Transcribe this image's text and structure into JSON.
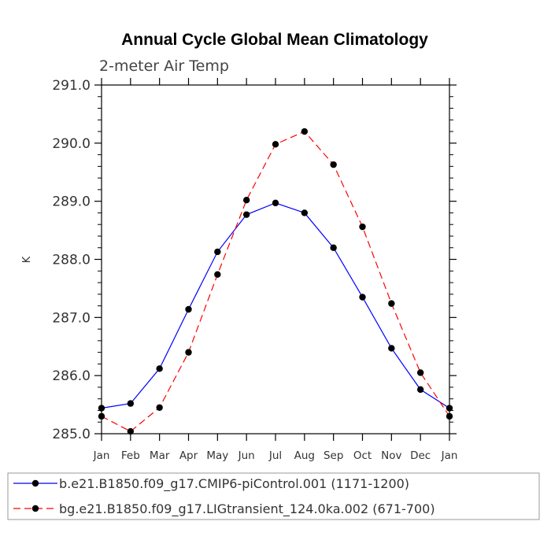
{
  "chart_data": {
    "type": "line",
    "title": "Annual Cycle Global Mean Climatology",
    "subtitle": "2-meter Air Temp",
    "xlabel": "",
    "ylabel": "K",
    "categories": [
      "Jan",
      "Feb",
      "Mar",
      "Apr",
      "May",
      "Jun",
      "Jul",
      "Aug",
      "Sep",
      "Oct",
      "Nov",
      "Dec",
      "Jan"
    ],
    "ylim": [
      285.0,
      291.0
    ],
    "yticks": [
      "285.0",
      "286.0",
      "287.0",
      "288.0",
      "289.0",
      "290.0",
      "291.0"
    ],
    "grid": false,
    "legend_position": "bottom",
    "series": [
      {
        "name": "b.e21.B1850.f09_g17.CMIP6-piControl.001 (1171-1200)",
        "color": "#0000ff",
        "line_style": "solid",
        "marker": "circle",
        "values": [
          285.44,
          285.52,
          286.12,
          287.14,
          288.13,
          288.77,
          288.97,
          288.8,
          288.2,
          287.35,
          286.47,
          285.76,
          285.44
        ]
      },
      {
        "name": "bg.e21.B1850.f09_g17.LIGtransient_124.0ka.002 (671-700)",
        "color": "#ff0000",
        "line_style": "dashed",
        "marker": "circle",
        "values": [
          285.3,
          285.04,
          285.45,
          286.4,
          287.74,
          289.02,
          289.98,
          290.2,
          289.63,
          288.56,
          287.24,
          286.05,
          285.3
        ]
      }
    ]
  }
}
